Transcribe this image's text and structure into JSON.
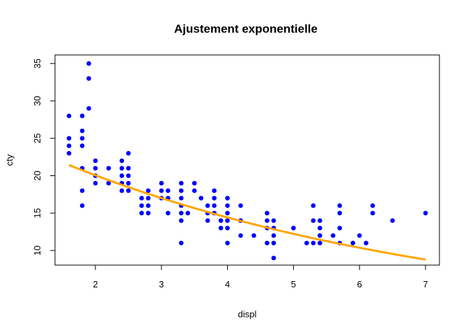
{
  "chart_data": {
    "type": "scatter",
    "title": "Ajustement exponentielle",
    "xlabel": "displ",
    "ylabel": "cty",
    "xlim": [
      1.6,
      7.0
    ],
    "ylim": [
      9,
      35
    ],
    "x_ticks": [
      2,
      3,
      4,
      5,
      6,
      7
    ],
    "y_ticks": [
      10,
      15,
      20,
      25,
      30,
      35
    ],
    "grid": false,
    "colors": {
      "points": "#0000ff",
      "fit_line": "#ffa500"
    },
    "points": [
      [
        1.6,
        28
      ],
      [
        1.6,
        25
      ],
      [
        1.6,
        24
      ],
      [
        1.6,
        23
      ],
      [
        1.8,
        28
      ],
      [
        1.8,
        26
      ],
      [
        1.8,
        25
      ],
      [
        1.8,
        24
      ],
      [
        1.8,
        21
      ],
      [
        1.8,
        18
      ],
      [
        1.8,
        16
      ],
      [
        1.9,
        35
      ],
      [
        1.9,
        33
      ],
      [
        1.9,
        29
      ],
      [
        2.0,
        22
      ],
      [
        2.0,
        21
      ],
      [
        2.0,
        20
      ],
      [
        2.0,
        19
      ],
      [
        2.2,
        21
      ],
      [
        2.2,
        19
      ],
      [
        2.4,
        22
      ],
      [
        2.4,
        21
      ],
      [
        2.4,
        20
      ],
      [
        2.4,
        19
      ],
      [
        2.4,
        18
      ],
      [
        2.5,
        23
      ],
      [
        2.5,
        21
      ],
      [
        2.5,
        20
      ],
      [
        2.5,
        19
      ],
      [
        2.5,
        18
      ],
      [
        2.7,
        17
      ],
      [
        2.7,
        16
      ],
      [
        2.7,
        15
      ],
      [
        2.8,
        18
      ],
      [
        2.8,
        17
      ],
      [
        2.8,
        16
      ],
      [
        2.8,
        15
      ],
      [
        3.0,
        19
      ],
      [
        3.0,
        18
      ],
      [
        3.0,
        17
      ],
      [
        3.1,
        18
      ],
      [
        3.1,
        17
      ],
      [
        3.1,
        15
      ],
      [
        3.3,
        19
      ],
      [
        3.3,
        18
      ],
      [
        3.3,
        17
      ],
      [
        3.3,
        16
      ],
      [
        3.3,
        15
      ],
      [
        3.3,
        14
      ],
      [
        3.3,
        11
      ],
      [
        3.4,
        15
      ],
      [
        3.5,
        19
      ],
      [
        3.5,
        18
      ],
      [
        3.6,
        17
      ],
      [
        3.7,
        16
      ],
      [
        3.7,
        15
      ],
      [
        3.7,
        14
      ],
      [
        3.8,
        18
      ],
      [
        3.8,
        17
      ],
      [
        3.8,
        16
      ],
      [
        3.8,
        15
      ],
      [
        3.9,
        14
      ],
      [
        3.9,
        13
      ],
      [
        4.0,
        17
      ],
      [
        4.0,
        16
      ],
      [
        4.0,
        15
      ],
      [
        4.0,
        14
      ],
      [
        4.0,
        13
      ],
      [
        4.0,
        11
      ],
      [
        4.2,
        16
      ],
      [
        4.2,
        14
      ],
      [
        4.2,
        12
      ],
      [
        4.4,
        12
      ],
      [
        4.6,
        15
      ],
      [
        4.6,
        14
      ],
      [
        4.6,
        13
      ],
      [
        4.6,
        11
      ],
      [
        4.7,
        14
      ],
      [
        4.7,
        13
      ],
      [
        4.7,
        12
      ],
      [
        4.7,
        11
      ],
      [
        4.7,
        9
      ],
      [
        5.0,
        13
      ],
      [
        5.2,
        11
      ],
      [
        5.3,
        16
      ],
      [
        5.3,
        14
      ],
      [
        5.3,
        11
      ],
      [
        5.4,
        14
      ],
      [
        5.4,
        13
      ],
      [
        5.4,
        12
      ],
      [
        5.4,
        11
      ],
      [
        5.6,
        12
      ],
      [
        5.7,
        16
      ],
      [
        5.7,
        15
      ],
      [
        5.7,
        13
      ],
      [
        5.7,
        11
      ],
      [
        5.9,
        11
      ],
      [
        6.0,
        12
      ],
      [
        6.1,
        11
      ],
      [
        6.2,
        16
      ],
      [
        6.2,
        15
      ],
      [
        6.5,
        14
      ],
      [
        7.0,
        15
      ]
    ],
    "fit": {
      "model": "exponential",
      "a": 27.9,
      "b": -0.165
    }
  }
}
